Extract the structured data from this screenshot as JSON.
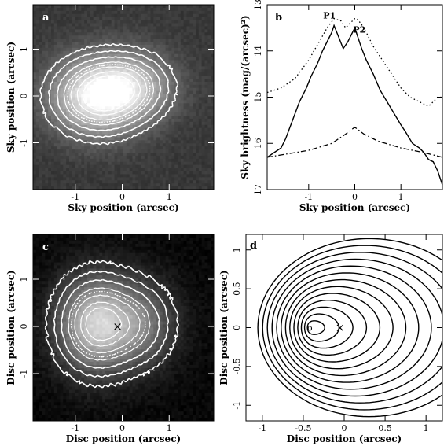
{
  "chart_data": [
    {
      "panel_label": "a",
      "type": "heatmap",
      "xlabel": "Sky position (arcsec)",
      "ylabel": "Sky position (arcsec)",
      "xlim": [
        -1.9,
        1.95
      ],
      "ylim": [
        -2.0,
        1.95
      ],
      "xticks": [
        -1,
        0,
        1
      ],
      "yticks": [
        -1,
        0,
        1
      ],
      "colormap": "grayscale, white = bright",
      "contour_color": "#ffffff",
      "blobs": [
        {
          "x": -0.5,
          "y": 0.0,
          "sx": 0.55,
          "sy": 0.45,
          "amp": 1.0
        },
        {
          "x": 0.15,
          "y": 0.2,
          "sx": 0.5,
          "sy": 0.4,
          "amp": 0.55
        }
      ],
      "contour_levels": [
        0.08,
        0.16,
        0.28,
        0.42,
        0.58,
        0.75,
        0.9
      ],
      "dotted_levels": [
        0.5
      ]
    },
    {
      "panel_label": "b",
      "type": "line",
      "xlabel": "Sky position (arcsec)",
      "ylabel": "Sky brightness (mag/(arcsec)²)",
      "xlim": [
        -1.9,
        1.9
      ],
      "ylim": [
        17,
        13
      ],
      "xticks": [
        -1,
        0,
        1
      ],
      "yticks": [
        13,
        14,
        15,
        16,
        17
      ],
      "annotations": [
        {
          "text": "P1",
          "x": -0.55,
          "y": 13.3
        },
        {
          "text": "P2",
          "x": 0.1,
          "y": 13.6
        }
      ],
      "series": [
        {
          "style": "solid",
          "x": [
            -1.9,
            -1.75,
            -1.6,
            -1.5,
            -1.35,
            -1.2,
            -1.05,
            -0.95,
            -0.8,
            -0.7,
            -0.6,
            -0.5,
            -0.45,
            -0.35,
            -0.25,
            -0.15,
            -0.05,
            0.0,
            0.05,
            0.15,
            0.25,
            0.4,
            0.55,
            0.7,
            0.85,
            1.0,
            1.1,
            1.25,
            1.4,
            1.5,
            1.6,
            1.7,
            1.8,
            1.9
          ],
          "y": [
            16.3,
            16.2,
            16.1,
            15.9,
            15.5,
            15.1,
            14.8,
            14.55,
            14.25,
            14.0,
            13.8,
            13.6,
            13.45,
            13.7,
            13.95,
            13.8,
            13.6,
            13.5,
            13.65,
            13.95,
            14.2,
            14.5,
            14.85,
            15.1,
            15.35,
            15.6,
            15.75,
            16.0,
            16.1,
            16.2,
            16.35,
            16.4,
            16.6,
            16.9
          ]
        },
        {
          "style": "dotted",
          "x": [
            -1.9,
            -1.6,
            -1.3,
            -1.0,
            -0.8,
            -0.6,
            -0.45,
            -0.3,
            -0.2,
            -0.1,
            0.0,
            0.05,
            0.2,
            0.4,
            0.6,
            0.8,
            1.0,
            1.2,
            1.4,
            1.6,
            1.8,
            1.9
          ],
          "y": [
            14.9,
            14.8,
            14.6,
            14.2,
            13.85,
            13.5,
            13.3,
            13.35,
            13.5,
            13.4,
            13.3,
            13.3,
            13.5,
            13.9,
            14.2,
            14.5,
            14.8,
            15.0,
            15.1,
            15.2,
            15.0,
            15.0
          ]
        },
        {
          "style": "dash-dot",
          "x": [
            -1.9,
            -1.0,
            -0.5,
            -0.2,
            0.0,
            0.2,
            0.5,
            1.0,
            1.5,
            1.9
          ],
          "y": [
            16.3,
            16.15,
            16.0,
            15.8,
            15.65,
            15.8,
            15.95,
            16.1,
            16.2,
            16.3
          ]
        }
      ]
    },
    {
      "panel_label": "c",
      "type": "heatmap",
      "xlabel": "Disc position (arcsec)",
      "ylabel": "Disc position (arcsec)",
      "xlim": [
        -1.9,
        1.95
      ],
      "ylim": [
        -2.0,
        1.95
      ],
      "xticks": [
        -1,
        0,
        1
      ],
      "yticks": [
        -1,
        0,
        1
      ],
      "colormap": "grayscale, white = bright",
      "contour_color": "#ffffff",
      "marker": {
        "symbol": "×",
        "x": -0.1,
        "y": 0.0
      },
      "blobs": [
        {
          "x": -0.55,
          "y": 0.05,
          "sx": 0.45,
          "sy": 0.55,
          "amp": 1.0
        },
        {
          "x": 0.25,
          "y": 0.05,
          "sx": 0.45,
          "sy": 0.5,
          "amp": 0.5
        }
      ],
      "contour_levels": [
        0.06,
        0.14,
        0.26,
        0.42,
        0.6,
        0.78,
        0.92
      ],
      "dotted_levels": [
        0.5
      ]
    },
    {
      "panel_label": "d",
      "type": "contour",
      "xlabel": "Disc position (arcsec)",
      "ylabel": "Disc position (arcsec)",
      "xlim": [
        -1.2,
        1.2
      ],
      "ylim": [
        -1.2,
        1.2
      ],
      "xticks": [
        -1,
        -0.5,
        0,
        0.5,
        1
      ],
      "yticks": [
        -1,
        -0.5,
        0,
        0.5,
        1
      ],
      "marker": {
        "symbol": "×",
        "x": -0.05,
        "y": 0.0
      },
      "center_marker": {
        "symbol": "o",
        "x": -0.42,
        "y": 0.0
      },
      "contour_count": 13
    }
  ]
}
